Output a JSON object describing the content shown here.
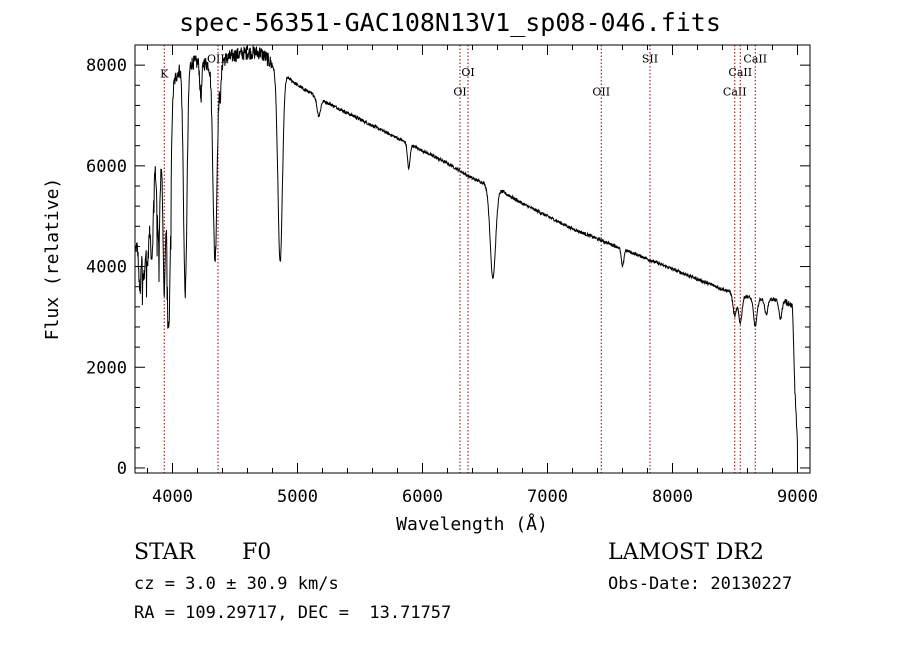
{
  "chart_data": {
    "type": "line",
    "title": "spec-56351-GAC108N13V1_sp08-046.fits",
    "xlabel": "Wavelength (Å)",
    "ylabel": "Flux (relative)",
    "xlim": [
      3700,
      9100
    ],
    "ylim": [
      -100,
      8400
    ],
    "xticks": [
      4000,
      5000,
      6000,
      7000,
      8000,
      9000
    ],
    "yticks": [
      0,
      2000,
      4000,
      6000,
      8000
    ],
    "grid": false,
    "continuum": {
      "x": [
        3700,
        3730,
        3760,
        3800,
        3850,
        3900,
        3950,
        4000,
        4050,
        4100,
        4150,
        4200,
        4250,
        4300,
        4400,
        4500,
        4600,
        4700,
        4750,
        4800,
        4900,
        5000,
        5100,
        5200,
        5400,
        5600,
        5800,
        6000,
        6200,
        6400,
        6600,
        6800,
        7000,
        7200,
        7400,
        7600,
        7800,
        8000,
        8200,
        8400,
        8600,
        8700,
        8800,
        8900,
        8960,
        8980,
        9000
      ],
      "y": [
        4300,
        4600,
        5000,
        5600,
        6200,
        6800,
        7200,
        7600,
        7900,
        8000,
        8050,
        8050,
        8050,
        8000,
        8100,
        8200,
        8250,
        8250,
        8150,
        8000,
        7800,
        7600,
        7450,
        7300,
        7050,
        6800,
        6550,
        6300,
        6050,
        5750,
        5550,
        5250,
        5000,
        4750,
        4550,
        4350,
        4150,
        3950,
        3750,
        3550,
        3400,
        3350,
        3350,
        3300,
        3200,
        1500,
        500
      ]
    },
    "absorption_features": [
      {
        "center": 3740,
        "depth": 1200,
        "width": 10
      },
      {
        "center": 3770,
        "depth": 1300,
        "width": 10
      },
      {
        "center": 3800,
        "depth": 1500,
        "width": 12
      },
      {
        "center": 3835,
        "depth": 1800,
        "width": 12
      },
      {
        "center": 3889,
        "depth": 2100,
        "width": 14
      },
      {
        "center": 3933,
        "depth": 3400,
        "width": 10
      },
      {
        "center": 3970,
        "depth": 4700,
        "width": 14
      },
      {
        "center": 4102,
        "depth": 4500,
        "width": 14
      },
      {
        "center": 4227,
        "depth": 700,
        "width": 8
      },
      {
        "center": 4340,
        "depth": 3900,
        "width": 16
      },
      {
        "center": 4383,
        "depth": 600,
        "width": 8
      },
      {
        "center": 4861,
        "depth": 3800,
        "width": 18
      },
      {
        "center": 5170,
        "depth": 350,
        "width": 14
      },
      {
        "center": 5890,
        "depth": 500,
        "width": 10
      },
      {
        "center": 6563,
        "depth": 1800,
        "width": 22
      },
      {
        "center": 7600,
        "depth": 350,
        "width": 10
      },
      {
        "center": 8498,
        "depth": 450,
        "width": 14
      },
      {
        "center": 8542,
        "depth": 550,
        "width": 14
      },
      {
        "center": 8662,
        "depth": 550,
        "width": 14
      },
      {
        "center": 8750,
        "depth": 300,
        "width": 12
      },
      {
        "center": 8863,
        "depth": 350,
        "width": 12
      }
    ],
    "noise_amplitude": 180,
    "line_markers": [
      {
        "label": "K",
        "x": 3934,
        "label_flux": 7750
      },
      {
        "label": "OIII",
        "x": 4364,
        "label_flux": 8050
      },
      {
        "label": "OI",
        "x": 6300,
        "label_flux": 7400
      },
      {
        "label": "OI",
        "x": 6364,
        "label_flux": 7780
      },
      {
        "label": "OII",
        "x": 7430,
        "label_flux": 7400
      },
      {
        "label": "SII",
        "x": 7820,
        "label_flux": 8050
      },
      {
        "label": "CaII",
        "x": 8498,
        "label_flux": 7400
      },
      {
        "label": "CaII",
        "x": 8542,
        "label_flux": 7780
      },
      {
        "label": "CaII",
        "x": 8662,
        "label_flux": 8050
      }
    ],
    "marker_color": "#8b0000",
    "line_color": "#000000"
  },
  "info": {
    "object_class": "STAR",
    "subclass": "F0",
    "redshift": "cz = 3.0 ± 30.9 km/s",
    "coordinates": "RA = 109.29717, DEC =  13.71757",
    "survey": "LAMOST DR2",
    "obs_date": "Obs-Date: 20130227"
  }
}
